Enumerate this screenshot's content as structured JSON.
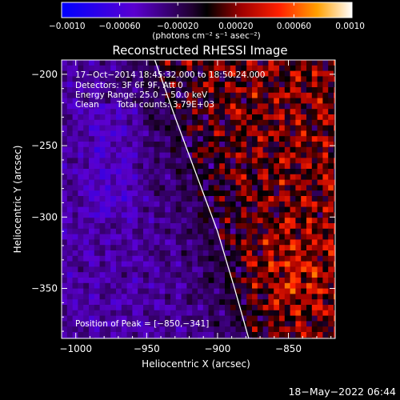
{
  "chart_data": {
    "type": "heatmap",
    "title": "Reconstructed RHESSI Image",
    "xlabel": "Heliocentric X (arcsec)",
    "ylabel": "Heliocentric Y (arcsec)",
    "xlim": [
      -1010,
      -817
    ],
    "ylim": [
      -385,
      -190
    ],
    "x_ticks": [
      -1000,
      -950,
      -900,
      -850
    ],
    "x_tick_labels": [
      "−1000",
      "−950",
      "−900",
      "−850"
    ],
    "y_ticks": [
      -200,
      -250,
      -300,
      -350
    ],
    "y_tick_labels": [
      "−200",
      "−250",
      "−300",
      "−350"
    ],
    "colorbar": {
      "range": [
        -0.001,
        0.001
      ],
      "ticks": [
        -0.001,
        -0.0006,
        -0.0002,
        0.0002,
        0.0006,
        0.001
      ],
      "tick_labels": [
        "−0.0010",
        "−0.00060",
        "−0.00020",
        "0.00020",
        "0.00060",
        "0.0010"
      ],
      "label": "(photons cm⁻² s⁻¹ asec⁻²)"
    },
    "annotations": {
      "time_range": "17−Oct−2014 18:45:32.000 to 18:50:24.000",
      "detectors": "Detectors: 3F 6F 9F, Att 0",
      "energy_range": "Energy Range: 25.0 − 50.0 keV",
      "method": "Clean",
      "total_counts": "Total counts: 3.79E+03",
      "peak": "Position of Peak = [−850,−341]"
    },
    "peak_position": [
      -850,
      -341
    ],
    "limb_curve": {
      "x": [
        -946,
        -930,
        -915,
        -900,
        -888,
        -878
      ],
      "y": [
        -185,
        -230,
        -270,
        -310,
        -350,
        -385
      ]
    },
    "grid": false
  },
  "footer": {
    "date": "18−May−2022 06:44"
  }
}
